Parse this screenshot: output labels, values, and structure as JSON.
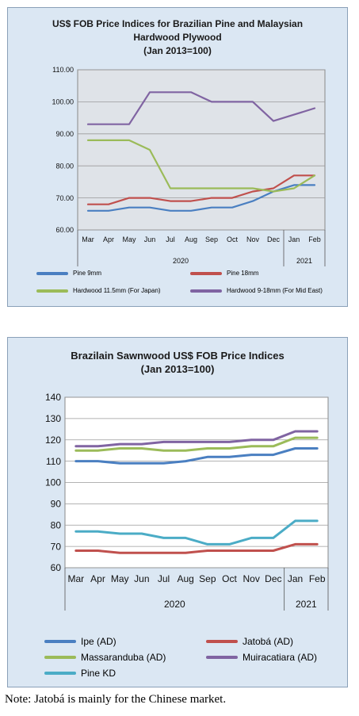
{
  "chart_data": [
    {
      "type": "line",
      "title": "US$ FOB Price Indices for Brazilian Pine and Malaysian Hardwood Plywood",
      "subtitle": "(Jan 2013=100)",
      "categories": [
        "Mar",
        "Apr",
        "May",
        "Jun",
        "Jul",
        "Aug",
        "Sep",
        "Oct",
        "Nov",
        "Dec",
        "Jan",
        "Feb"
      ],
      "year_labels": [
        "2020",
        "2021"
      ],
      "ylim": [
        60,
        110
      ],
      "yticks": [
        "60.00",
        "70.00",
        "80.00",
        "90.00",
        "100.00",
        "110.00"
      ],
      "grid": true,
      "legend_position": "bottom",
      "series": [
        {
          "name": "Pine 9mm",
          "color": "#4a7fc1",
          "values": [
            66,
            66,
            67,
            67,
            66,
            66,
            67,
            67,
            69,
            72,
            74,
            74
          ]
        },
        {
          "name": "Pine 18mm",
          "color": "#c0504d",
          "values": [
            68,
            68,
            70,
            70,
            69,
            69,
            70,
            70,
            72,
            73,
            77,
            77
          ]
        },
        {
          "name": "Hardwood 11.5mm (For Japan)",
          "color": "#9bbb59",
          "values": [
            88,
            88,
            88,
            85,
            73,
            73,
            73,
            73,
            73,
            72,
            73,
            77
          ]
        },
        {
          "name": "Hardwood 9-18mm (For Mid East)",
          "color": "#8064a2",
          "values": [
            93,
            93,
            93,
            103,
            103,
            103,
            100,
            100,
            100,
            94,
            96,
            98
          ]
        }
      ]
    },
    {
      "type": "line",
      "title": "Brazilain Sawnwood US$ FOB Price Indices",
      "subtitle": "(Jan 2013=100)",
      "categories": [
        "Mar",
        "Apr",
        "May",
        "Jun",
        "Jul",
        "Aug",
        "Sep",
        "Oct",
        "Nov",
        "Dec",
        "Jan",
        "Feb"
      ],
      "year_labels": [
        "2020",
        "2021"
      ],
      "ylim": [
        60,
        140
      ],
      "yticks": [
        "60",
        "70",
        "80",
        "90",
        "100",
        "110",
        "120",
        "130",
        "140"
      ],
      "grid": true,
      "legend_position": "bottom",
      "series": [
        {
          "name": "Ipe (AD)",
          "color": "#4a7fc1",
          "values": [
            110,
            110,
            109,
            109,
            109,
            110,
            112,
            112,
            113,
            113,
            116,
            116
          ]
        },
        {
          "name": "Jatobá (AD)",
          "color": "#c0504d",
          "values": [
            68,
            68,
            67,
            67,
            67,
            67,
            68,
            68,
            68,
            68,
            71,
            71
          ]
        },
        {
          "name": "Massaranduba (AD)",
          "color": "#9bbb59",
          "values": [
            115,
            115,
            116,
            116,
            115,
            115,
            116,
            116,
            117,
            117,
            121,
            121
          ]
        },
        {
          "name": "Muiracatiara (AD)",
          "color": "#8064a2",
          "values": [
            117,
            117,
            118,
            118,
            119,
            119,
            119,
            119,
            120,
            120,
            124,
            124
          ]
        },
        {
          "name": "Pine KD",
          "color": "#4bacc6",
          "values": [
            77,
            77,
            76,
            76,
            74,
            74,
            71,
            71,
            74,
            74,
            82,
            82
          ]
        }
      ]
    }
  ],
  "note": "Note: Jatobá is mainly for the Chinese market."
}
